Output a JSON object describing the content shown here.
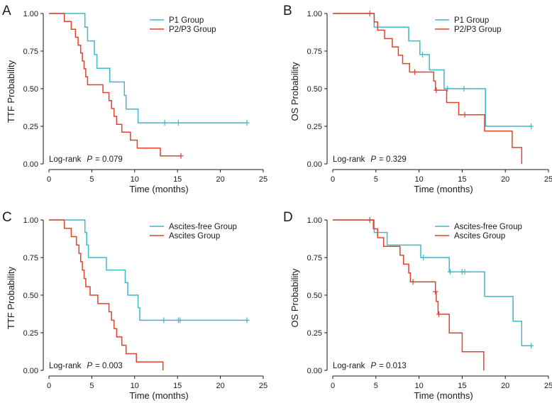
{
  "colors": {
    "group1": "#3FB8CC",
    "group2": "#E0432A",
    "axis": "#1a1a1a"
  },
  "chart_data": [
    {
      "type": "line",
      "subtype": "kaplan-meier",
      "panel": "A",
      "xlabel": "Time (months)",
      "ylabel": "TTF Probability",
      "xlim": [
        0,
        25
      ],
      "ylim": [
        0,
        1
      ],
      "xticks": [
        0,
        5,
        10,
        15,
        20,
        25
      ],
      "yticks": [
        "0.00",
        "0.25",
        "0.50",
        "0.75",
        "1.00"
      ],
      "legend_position": "top-right",
      "annotation": {
        "prefix": "Log-rank",
        "p_label": "P",
        "p_value": "= 0.079"
      },
      "series": [
        {
          "name": "P1 Group",
          "color": "#3FB8CC",
          "steps": [
            [
              0,
              1.0
            ],
            [
              4.2,
              1.0
            ],
            [
              4.2,
              0.909
            ],
            [
              4.5,
              0.909
            ],
            [
              4.5,
              0.818
            ],
            [
              5.3,
              0.818
            ],
            [
              5.3,
              0.727
            ],
            [
              5.6,
              0.727
            ],
            [
              5.6,
              0.636
            ],
            [
              7.1,
              0.636
            ],
            [
              7.1,
              0.545
            ],
            [
              8.8,
              0.545
            ],
            [
              8.8,
              0.455
            ],
            [
              9.0,
              0.455
            ],
            [
              9.0,
              0.364
            ],
            [
              10.4,
              0.364
            ],
            [
              10.4,
              0.273
            ],
            [
              23.1,
              0.273
            ]
          ],
          "censored": [
            [
              13.5,
              0.273
            ],
            [
              15.1,
              0.273
            ],
            [
              23.1,
              0.273
            ]
          ]
        },
        {
          "name": "P2/P3 Group",
          "color": "#E0432A",
          "steps": [
            [
              0,
              1.0
            ],
            [
              1.8,
              1.0
            ],
            [
              1.8,
              0.947
            ],
            [
              2.6,
              0.947
            ],
            [
              2.6,
              0.895
            ],
            [
              3.1,
              0.895
            ],
            [
              3.1,
              0.842
            ],
            [
              3.4,
              0.842
            ],
            [
              3.4,
              0.789
            ],
            [
              3.7,
              0.789
            ],
            [
              3.7,
              0.737
            ],
            [
              3.9,
              0.737
            ],
            [
              3.9,
              0.684
            ],
            [
              4.1,
              0.684
            ],
            [
              4.1,
              0.632
            ],
            [
              4.3,
              0.632
            ],
            [
              4.3,
              0.579
            ],
            [
              4.5,
              0.579
            ],
            [
              4.5,
              0.526
            ],
            [
              6.3,
              0.526
            ],
            [
              6.3,
              0.474
            ],
            [
              7.0,
              0.474
            ],
            [
              7.0,
              0.421
            ],
            [
              7.3,
              0.421
            ],
            [
              7.3,
              0.368
            ],
            [
              7.6,
              0.368
            ],
            [
              7.6,
              0.316
            ],
            [
              7.9,
              0.316
            ],
            [
              7.9,
              0.263
            ],
            [
              8.5,
              0.263
            ],
            [
              8.5,
              0.211
            ],
            [
              9.5,
              0.211
            ],
            [
              9.5,
              0.158
            ],
            [
              10.3,
              0.158
            ],
            [
              10.3,
              0.105
            ],
            [
              13.0,
              0.105
            ],
            [
              13.0,
              0.053
            ],
            [
              15.4,
              0.053
            ]
          ],
          "censored": [
            [
              15.4,
              0.053
            ]
          ]
        }
      ]
    },
    {
      "type": "line",
      "subtype": "kaplan-meier",
      "panel": "B",
      "xlabel": "Time (months)",
      "ylabel": "OS Probability",
      "xlim": [
        0,
        25
      ],
      "ylim": [
        0,
        1
      ],
      "xticks": [
        0,
        5,
        10,
        15,
        20,
        25
      ],
      "yticks": [
        "0.00",
        "0.25",
        "0.50",
        "0.75",
        "1.00"
      ],
      "legend_position": "top-right",
      "annotation": {
        "prefix": "Log-rank",
        "p_label": "P",
        "p_value": "= 0.329"
      },
      "series": [
        {
          "name": "P1 Group",
          "color": "#3FB8CC",
          "steps": [
            [
              0,
              1.0
            ],
            [
              4.8,
              1.0
            ],
            [
              4.8,
              0.909
            ],
            [
              8.8,
              0.909
            ],
            [
              8.8,
              0.818
            ],
            [
              10.1,
              0.818
            ],
            [
              10.1,
              0.727
            ],
            [
              11.2,
              0.727
            ],
            [
              11.2,
              0.625
            ],
            [
              12.9,
              0.625
            ],
            [
              12.9,
              0.5
            ],
            [
              17.7,
              0.5
            ],
            [
              17.7,
              0.25
            ],
            [
              23.0,
              0.25
            ]
          ],
          "censored": [
            [
              10.4,
              0.727
            ],
            [
              13.3,
              0.5
            ],
            [
              15.2,
              0.5
            ],
            [
              23.0,
              0.25
            ]
          ]
        },
        {
          "name": "P2/P3 Group",
          "color": "#E0432A",
          "steps": [
            [
              0,
              1.0
            ],
            [
              4.8,
              1.0
            ],
            [
              4.8,
              0.944
            ],
            [
              5.2,
              0.944
            ],
            [
              5.2,
              0.889
            ],
            [
              6.0,
              0.889
            ],
            [
              6.0,
              0.833
            ],
            [
              6.9,
              0.833
            ],
            [
              6.9,
              0.778
            ],
            [
              7.6,
              0.778
            ],
            [
              7.6,
              0.722
            ],
            [
              8.1,
              0.722
            ],
            [
              8.1,
              0.667
            ],
            [
              8.9,
              0.667
            ],
            [
              8.9,
              0.611
            ],
            [
              11.7,
              0.611
            ],
            [
              11.7,
              0.551
            ],
            [
              11.9,
              0.551
            ],
            [
              11.9,
              0.49
            ],
            [
              13.2,
              0.49
            ],
            [
              13.2,
              0.408
            ],
            [
              14.6,
              0.408
            ],
            [
              14.6,
              0.327
            ],
            [
              17.6,
              0.327
            ],
            [
              17.6,
              0.218
            ],
            [
              20.8,
              0.218
            ],
            [
              20.8,
              0.109
            ],
            [
              21.9,
              0.109
            ],
            [
              21.9,
              0.0
            ]
          ],
          "censored": [
            [
              4.3,
              1.0
            ],
            [
              9.5,
              0.611
            ],
            [
              12.0,
              0.49
            ],
            [
              15.3,
              0.327
            ]
          ]
        }
      ]
    },
    {
      "type": "line",
      "subtype": "kaplan-meier",
      "panel": "C",
      "xlabel": "Time (months)",
      "ylabel": "TTF Probability",
      "xlim": [
        0,
        25
      ],
      "ylim": [
        0,
        1
      ],
      "xticks": [
        0,
        5,
        10,
        15,
        20,
        25
      ],
      "yticks": [
        "0.00",
        "0.25",
        "0.50",
        "0.75",
        "1.00"
      ],
      "legend_position": "top-right",
      "annotation": {
        "prefix": "Log-rank",
        "p_label": "P",
        "p_value": "= 0.003"
      },
      "series": [
        {
          "name": "Ascites-free Group",
          "color": "#3FB8CC",
          "steps": [
            [
              0,
              1.0
            ],
            [
              4.2,
              1.0
            ],
            [
              4.2,
              0.917
            ],
            [
              4.4,
              0.917
            ],
            [
              4.4,
              0.833
            ],
            [
              4.6,
              0.833
            ],
            [
              4.6,
              0.75
            ],
            [
              6.7,
              0.75
            ],
            [
              6.7,
              0.667
            ],
            [
              8.9,
              0.667
            ],
            [
              8.9,
              0.583
            ],
            [
              9.2,
              0.583
            ],
            [
              9.2,
              0.5
            ],
            [
              10.4,
              0.5
            ],
            [
              10.4,
              0.417
            ],
            [
              10.6,
              0.417
            ],
            [
              10.6,
              0.333
            ],
            [
              23.1,
              0.333
            ]
          ],
          "censored": [
            [
              13.4,
              0.333
            ],
            [
              15.1,
              0.333
            ],
            [
              15.3,
              0.333
            ],
            [
              23.1,
              0.333
            ]
          ]
        },
        {
          "name": "Ascites Group",
          "color": "#E0432A",
          "steps": [
            [
              0,
              1.0
            ],
            [
              1.8,
              1.0
            ],
            [
              1.8,
              0.944
            ],
            [
              2.6,
              0.944
            ],
            [
              2.6,
              0.889
            ],
            [
              3.2,
              0.889
            ],
            [
              3.2,
              0.833
            ],
            [
              3.5,
              0.833
            ],
            [
              3.5,
              0.778
            ],
            [
              3.7,
              0.778
            ],
            [
              3.7,
              0.722
            ],
            [
              3.9,
              0.722
            ],
            [
              3.9,
              0.667
            ],
            [
              4.1,
              0.667
            ],
            [
              4.1,
              0.611
            ],
            [
              4.3,
              0.611
            ],
            [
              4.3,
              0.556
            ],
            [
              4.8,
              0.556
            ],
            [
              4.8,
              0.5
            ],
            [
              5.7,
              0.5
            ],
            [
              5.7,
              0.444
            ],
            [
              7.0,
              0.444
            ],
            [
              7.0,
              0.389
            ],
            [
              7.3,
              0.389
            ],
            [
              7.3,
              0.333
            ],
            [
              7.6,
              0.333
            ],
            [
              7.6,
              0.278
            ],
            [
              7.9,
              0.278
            ],
            [
              7.9,
              0.222
            ],
            [
              8.5,
              0.222
            ],
            [
              8.5,
              0.167
            ],
            [
              9.0,
              0.167
            ],
            [
              9.0,
              0.111
            ],
            [
              10.2,
              0.111
            ],
            [
              10.2,
              0.056
            ],
            [
              13.3,
              0.056
            ],
            [
              13.3,
              0.0
            ]
          ],
          "censored": []
        }
      ]
    },
    {
      "type": "line",
      "subtype": "kaplan-meier",
      "panel": "D",
      "xlabel": "Time (months)",
      "ylabel": "OS Probability",
      "xlim": [
        0,
        25
      ],
      "ylim": [
        0,
        1
      ],
      "xticks": [
        0,
        5,
        10,
        15,
        20,
        25
      ],
      "yticks": [
        "0.00",
        "0.25",
        "0.50",
        "0.75",
        "1.00"
      ],
      "legend_position": "top-right",
      "annotation": {
        "prefix": "Log-rank",
        "p_label": "P",
        "p_value": "= 0.013"
      },
      "series": [
        {
          "name": "Ascites-free Group",
          "color": "#3FB8CC",
          "steps": [
            [
              0,
              1.0
            ],
            [
              4.8,
              1.0
            ],
            [
              4.8,
              0.917
            ],
            [
              6.3,
              0.917
            ],
            [
              6.3,
              0.833
            ],
            [
              10.2,
              0.833
            ],
            [
              10.2,
              0.75
            ],
            [
              13.5,
              0.75
            ],
            [
              13.5,
              0.655
            ],
            [
              17.6,
              0.655
            ],
            [
              17.6,
              0.491
            ],
            [
              20.9,
              0.491
            ],
            [
              20.9,
              0.327
            ],
            [
              21.9,
              0.327
            ],
            [
              21.9,
              0.164
            ],
            [
              23.0,
              0.164
            ]
          ],
          "censored": [
            [
              10.5,
              0.75
            ],
            [
              13.6,
              0.655
            ],
            [
              15.0,
              0.655
            ],
            [
              15.3,
              0.655
            ],
            [
              23.0,
              0.164
            ]
          ]
        },
        {
          "name": "Ascites Group",
          "color": "#E0432A",
          "steps": [
            [
              0,
              1.0
            ],
            [
              4.7,
              1.0
            ],
            [
              4.7,
              0.941
            ],
            [
              5.2,
              0.941
            ],
            [
              5.2,
              0.882
            ],
            [
              5.9,
              0.882
            ],
            [
              5.9,
              0.824
            ],
            [
              7.8,
              0.824
            ],
            [
              7.8,
              0.765
            ],
            [
              8.2,
              0.765
            ],
            [
              8.2,
              0.706
            ],
            [
              8.8,
              0.706
            ],
            [
              8.8,
              0.647
            ],
            [
              9.0,
              0.647
            ],
            [
              9.0,
              0.588
            ],
            [
              11.9,
              0.588
            ],
            [
              11.9,
              0.523
            ],
            [
              12.0,
              0.523
            ],
            [
              12.0,
              0.458
            ],
            [
              12.2,
              0.458
            ],
            [
              12.2,
              0.373
            ],
            [
              13.5,
              0.373
            ],
            [
              13.5,
              0.249
            ],
            [
              15.0,
              0.249
            ],
            [
              15.0,
              0.124
            ],
            [
              17.5,
              0.124
            ],
            [
              17.5,
              0.0
            ]
          ],
          "censored": [
            [
              4.3,
              1.0
            ],
            [
              9.3,
              0.588
            ],
            [
              11.9,
              0.523
            ],
            [
              12.3,
              0.373
            ]
          ]
        }
      ]
    }
  ]
}
